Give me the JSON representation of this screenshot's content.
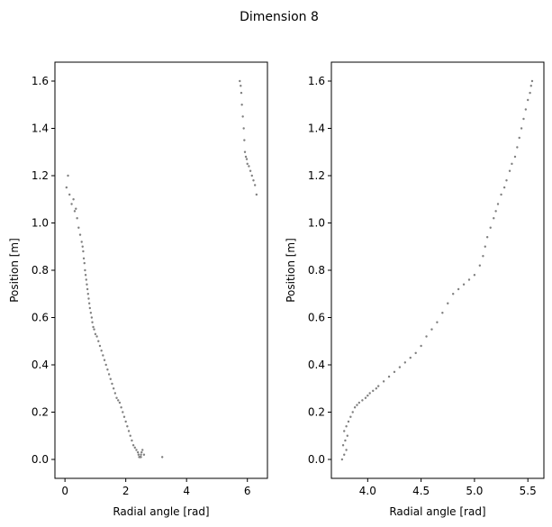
{
  "figure": {
    "title": "Dimension 8"
  },
  "colors": {
    "points": "#808080",
    "frame": "#000000"
  },
  "chart_data": [
    {
      "type": "scatter",
      "xlabel": "Radial angle [rad]",
      "ylabel": "Position [m]",
      "xlim": [
        -0.33,
        6.66
      ],
      "ylim": [
        -0.08,
        1.68
      ],
      "xticks": [
        0,
        2,
        4,
        6
      ],
      "xtick_labels": [
        "0",
        "2",
        "4",
        "6"
      ],
      "yticks": [
        0.0,
        0.2,
        0.4,
        0.6,
        0.8,
        1.0,
        1.2,
        1.4,
        1.6
      ],
      "ytick_labels": [
        "0.0",
        "0.2",
        "0.4",
        "0.6",
        "0.8",
        "1.0",
        "1.2",
        "1.4",
        "1.6"
      ],
      "grid": false,
      "series": [
        {
          "x": [
            0.05,
            0.1,
            0.15,
            0.22,
            0.28,
            0.32,
            0.36,
            0.4,
            0.45,
            0.5,
            0.55,
            0.58,
            0.6,
            0.62,
            0.64,
            0.66,
            0.68,
            0.7,
            0.72,
            0.74,
            0.76,
            0.78,
            0.8,
            0.82,
            0.85,
            0.88,
            0.9,
            0.93,
            0.96,
            1.0,
            1.05,
            1.1,
            1.15,
            1.2,
            1.25,
            1.3,
            1.35,
            1.4,
            1.45,
            1.5,
            1.55,
            1.6,
            1.65,
            1.7,
            1.75,
            1.8,
            1.85,
            1.9,
            1.95,
            2.0,
            2.05,
            2.1,
            2.15,
            2.2,
            2.25,
            2.3,
            2.35,
            2.4,
            2.42,
            2.44,
            2.46,
            2.48,
            2.5,
            2.5,
            2.52,
            2.55,
            2.6,
            3.2,
            5.75,
            5.78,
            5.8,
            5.82,
            5.85,
            5.88,
            5.9,
            5.92,
            5.95,
            5.98,
            6.0,
            6.05,
            6.1,
            6.15,
            6.2,
            6.25,
            6.3
          ],
          "y": [
            1.15,
            1.2,
            1.12,
            1.08,
            1.1,
            1.05,
            1.06,
            1.02,
            0.98,
            0.95,
            0.92,
            0.9,
            0.88,
            0.85,
            0.83,
            0.8,
            0.78,
            0.76,
            0.74,
            0.72,
            0.7,
            0.68,
            0.66,
            0.64,
            0.62,
            0.6,
            0.58,
            0.56,
            0.55,
            0.53,
            0.52,
            0.5,
            0.48,
            0.46,
            0.44,
            0.42,
            0.4,
            0.38,
            0.36,
            0.34,
            0.32,
            0.3,
            0.28,
            0.26,
            0.25,
            0.24,
            0.22,
            0.2,
            0.18,
            0.16,
            0.14,
            0.12,
            0.1,
            0.08,
            0.06,
            0.05,
            0.04,
            0.03,
            0.02,
            0.01,
            0.01,
            0.01,
            0.01,
            0.02,
            0.03,
            0.04,
            0.02,
            0.01,
            1.6,
            1.58,
            1.55,
            1.5,
            1.45,
            1.4,
            1.35,
            1.3,
            1.28,
            1.27,
            1.25,
            1.24,
            1.22,
            1.2,
            1.18,
            1.16,
            1.12
          ]
        }
      ]
    },
    {
      "type": "scatter",
      "xlabel": "Radial angle [rad]",
      "ylabel": "Position [m]",
      "xlim": [
        3.66,
        5.65
      ],
      "ylim": [
        -0.08,
        1.68
      ],
      "xticks": [
        4.0,
        4.5,
        5.0,
        5.5
      ],
      "xtick_labels": [
        "4.0",
        "4.5",
        "5.0",
        "5.5"
      ],
      "yticks": [
        0.0,
        0.2,
        0.4,
        0.6,
        0.8,
        1.0,
        1.2,
        1.4,
        1.6
      ],
      "ytick_labels": [
        "0.0",
        "0.2",
        "0.4",
        "0.6",
        "0.8",
        "1.0",
        "1.2",
        "1.4",
        "1.6"
      ],
      "grid": false,
      "series": [
        {
          "x": [
            3.76,
            3.78,
            3.8,
            3.77,
            3.79,
            3.81,
            3.78,
            3.8,
            3.82,
            3.84,
            3.86,
            3.88,
            3.9,
            3.92,
            3.95,
            3.98,
            4.0,
            4.02,
            4.05,
            4.08,
            4.1,
            4.15,
            4.2,
            4.25,
            4.3,
            4.35,
            4.4,
            4.45,
            4.5,
            4.55,
            4.6,
            4.65,
            4.7,
            4.75,
            4.8,
            4.85,
            4.9,
            4.95,
            5.0,
            5.05,
            5.08,
            5.1,
            5.12,
            5.15,
            5.18,
            5.2,
            5.22,
            5.25,
            5.28,
            5.3,
            5.33,
            5.35,
            5.38,
            5.4,
            5.42,
            5.44,
            5.46,
            5.48,
            5.5,
            5.52,
            5.53,
            5.54
          ],
          "y": [
            0.0,
            0.02,
            0.04,
            0.06,
            0.08,
            0.1,
            0.12,
            0.14,
            0.16,
            0.18,
            0.2,
            0.22,
            0.23,
            0.24,
            0.25,
            0.26,
            0.27,
            0.28,
            0.29,
            0.3,
            0.31,
            0.33,
            0.35,
            0.37,
            0.39,
            0.41,
            0.43,
            0.45,
            0.48,
            0.52,
            0.55,
            0.58,
            0.62,
            0.66,
            0.7,
            0.72,
            0.74,
            0.76,
            0.78,
            0.82,
            0.86,
            0.9,
            0.94,
            0.98,
            1.02,
            1.05,
            1.08,
            1.12,
            1.15,
            1.18,
            1.22,
            1.25,
            1.28,
            1.32,
            1.36,
            1.4,
            1.44,
            1.48,
            1.52,
            1.55,
            1.58,
            1.6
          ]
        }
      ]
    }
  ]
}
